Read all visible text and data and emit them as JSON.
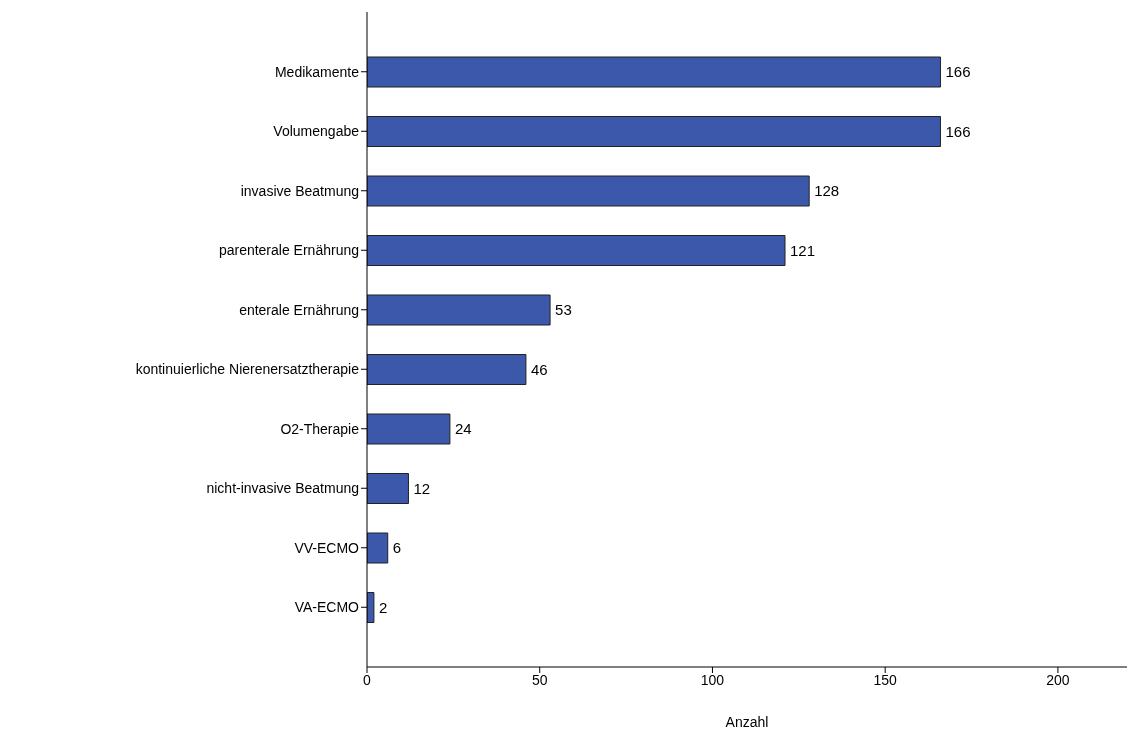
{
  "chart_data": {
    "type": "bar",
    "orientation": "horizontal",
    "xlabel": "Anzahl",
    "categories": [
      "Medikamente",
      "Volumengabe",
      "invasive Beatmung",
      "parenterale Ernährung",
      "enterale Ernährung",
      "kontinuierliche Nierenersatztherapie",
      "O2-Therapie",
      "nicht-invasive Beatmung",
      "VV-ECMO",
      "VA-ECMO"
    ],
    "values": [
      166,
      166,
      128,
      121,
      53,
      46,
      24,
      12,
      6,
      2
    ],
    "color": "#3c58aa",
    "xlim": [
      0,
      220
    ],
    "xticks": [
      0,
      50,
      100,
      150,
      200
    ],
    "data_labels": true,
    "grid": false,
    "legend": false
  }
}
